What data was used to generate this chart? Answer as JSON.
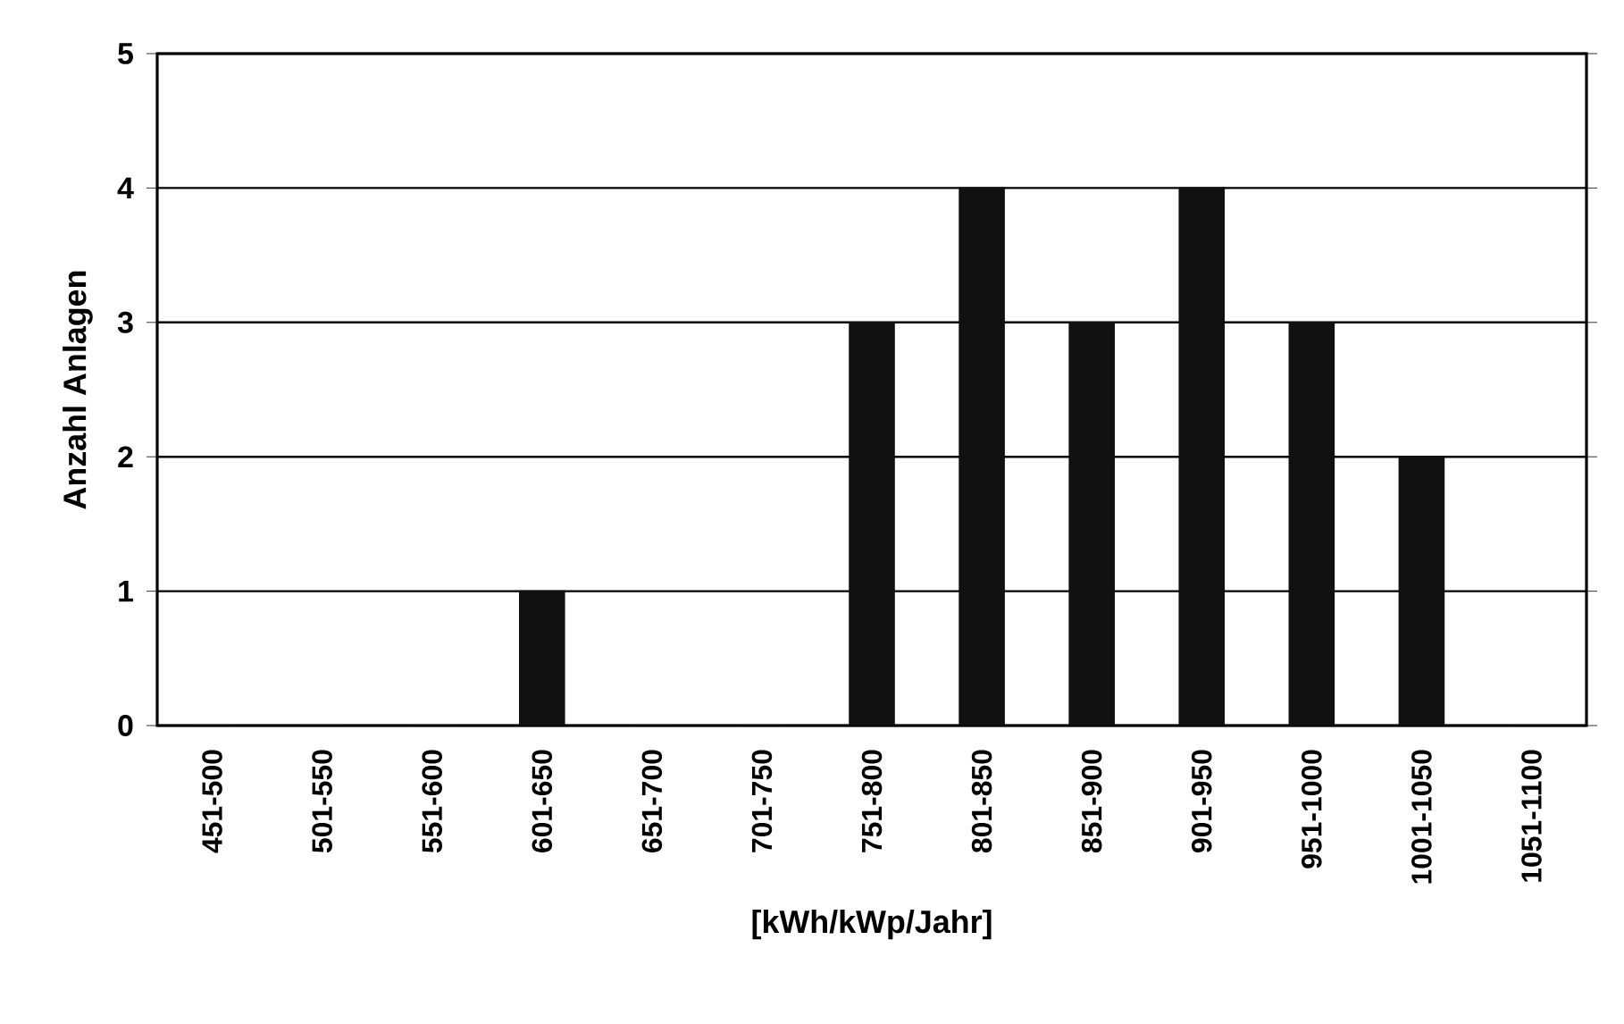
{
  "chart_data": {
    "type": "bar",
    "xlabel": "[kWh/kWp/Jahr]",
    "ylabel": "Anzahl Anlagen",
    "categories": [
      "451-500",
      "501-550",
      "551-600",
      "601-650",
      "651-700",
      "701-750",
      "751-800",
      "801-850",
      "851-900",
      "901-950",
      "951-1000",
      "1001-1050",
      "1051-1100"
    ],
    "values": [
      0,
      0,
      0,
      1,
      0,
      0,
      3,
      4,
      3,
      4,
      3,
      2,
      0
    ],
    "color": "#111111",
    "ylim": [
      0,
      5
    ],
    "yticks": [
      0,
      1,
      2,
      3,
      4,
      5
    ],
    "grid": "y"
  }
}
